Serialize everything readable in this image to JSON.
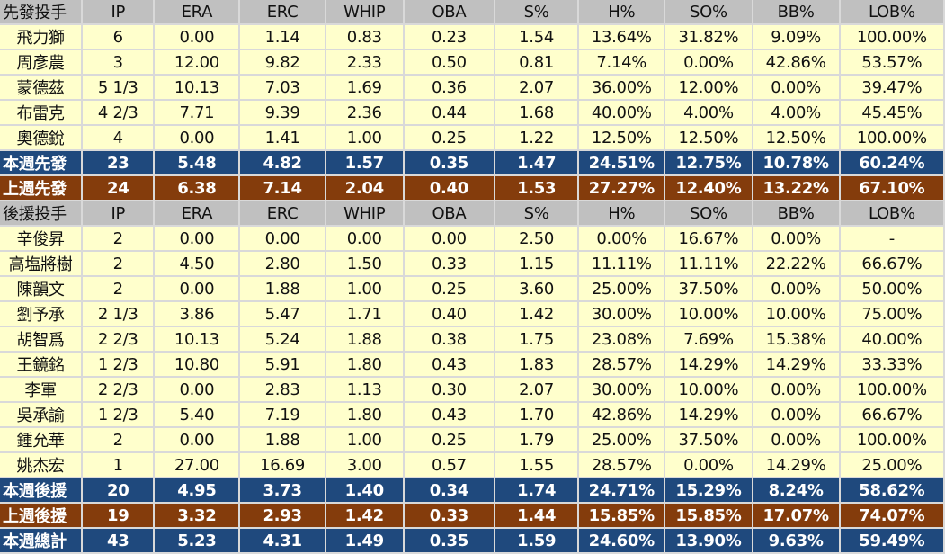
{
  "colors": {
    "header": "#c0c0c0",
    "data": "#ffffcc",
    "this_week": "#1f497d",
    "last_week": "#843c0c"
  },
  "columns": [
    "IP",
    "ERA",
    "ERC",
    "WHIP",
    "OBA",
    "S%",
    "H%",
    "SO%",
    "BB%",
    "LOB%"
  ],
  "rows": [
    {
      "type": "hdr",
      "cells": [
        "先發投手",
        "IP",
        "ERA",
        "ERC",
        "WHIP",
        "OBA",
        "S%",
        "H%",
        "SO%",
        "BB%",
        "LOB%"
      ]
    },
    {
      "type": "data",
      "cells": [
        "飛力獅",
        "6",
        "0.00",
        "1.14",
        "0.83",
        "0.23",
        "1.54",
        "13.64%",
        "31.82%",
        "9.09%",
        "100.00%"
      ]
    },
    {
      "type": "data",
      "cells": [
        "周彥農",
        "3",
        "12.00",
        "9.82",
        "2.33",
        "0.50",
        "0.81",
        "7.14%",
        "0.00%",
        "42.86%",
        "53.57%"
      ]
    },
    {
      "type": "data",
      "cells": [
        "蒙德茲",
        "5 1/3",
        "10.13",
        "7.03",
        "1.69",
        "0.36",
        "2.07",
        "36.00%",
        "12.00%",
        "0.00%",
        "39.47%"
      ]
    },
    {
      "type": "data",
      "cells": [
        "布雷克",
        "4 2/3",
        "7.71",
        "9.39",
        "2.36",
        "0.44",
        "1.68",
        "40.00%",
        "4.00%",
        "4.00%",
        "45.45%"
      ]
    },
    {
      "type": "data",
      "cells": [
        "奧德銳",
        "4",
        "0.00",
        "1.41",
        "1.00",
        "0.25",
        "1.22",
        "12.50%",
        "12.50%",
        "12.50%",
        "100.00%"
      ]
    },
    {
      "type": "cur",
      "cells": [
        "本週先發",
        "23",
        "5.48",
        "4.82",
        "1.57",
        "0.35",
        "1.47",
        "24.51%",
        "12.75%",
        "10.78%",
        "60.24%"
      ]
    },
    {
      "type": "prev",
      "cells": [
        "上週先發",
        "24",
        "6.38",
        "7.14",
        "2.04",
        "0.40",
        "1.53",
        "27.27%",
        "12.40%",
        "13.22%",
        "67.10%"
      ]
    },
    {
      "type": "hdr",
      "cells": [
        "後援投手",
        "IP",
        "ERA",
        "ERC",
        "WHIP",
        "OBA",
        "S%",
        "H%",
        "SO%",
        "BB%",
        "LOB%"
      ]
    },
    {
      "type": "data",
      "cells": [
        "辛俊昇",
        "2",
        "0.00",
        "0.00",
        "0.00",
        "0.00",
        "2.50",
        "0.00%",
        "16.67%",
        "0.00%",
        "-"
      ]
    },
    {
      "type": "data",
      "cells": [
        "高塩將樹",
        "2",
        "4.50",
        "2.80",
        "1.50",
        "0.33",
        "1.15",
        "11.11%",
        "11.11%",
        "22.22%",
        "66.67%"
      ]
    },
    {
      "type": "data",
      "cells": [
        "陳韻文",
        "2",
        "0.00",
        "1.88",
        "1.00",
        "0.25",
        "3.60",
        "25.00%",
        "37.50%",
        "0.00%",
        "50.00%"
      ]
    },
    {
      "type": "data",
      "cells": [
        "劉予承",
        "2 1/3",
        "3.86",
        "5.47",
        "1.71",
        "0.40",
        "1.42",
        "30.00%",
        "10.00%",
        "10.00%",
        "75.00%"
      ]
    },
    {
      "type": "data",
      "cells": [
        "胡智爲",
        "2 2/3",
        "10.13",
        "5.24",
        "1.88",
        "0.38",
        "1.75",
        "23.08%",
        "7.69%",
        "15.38%",
        "40.00%"
      ]
    },
    {
      "type": "data",
      "cells": [
        "王鏡銘",
        "1 2/3",
        "10.80",
        "5.91",
        "1.80",
        "0.43",
        "1.83",
        "28.57%",
        "14.29%",
        "14.29%",
        "33.33%"
      ]
    },
    {
      "type": "data",
      "cells": [
        "李軍",
        "2 2/3",
        "0.00",
        "2.83",
        "1.13",
        "0.30",
        "2.07",
        "30.00%",
        "10.00%",
        "0.00%",
        "100.00%"
      ]
    },
    {
      "type": "data",
      "cells": [
        "吳承諭",
        "1 2/3",
        "5.40",
        "7.19",
        "1.80",
        "0.43",
        "1.70",
        "42.86%",
        "14.29%",
        "0.00%",
        "66.67%"
      ]
    },
    {
      "type": "data",
      "cells": [
        "鍾允華",
        "2",
        "0.00",
        "1.88",
        "1.00",
        "0.25",
        "1.79",
        "25.00%",
        "37.50%",
        "0.00%",
        "100.00%"
      ]
    },
    {
      "type": "data",
      "cells": [
        "姚杰宏",
        "1",
        "27.00",
        "16.69",
        "3.00",
        "0.57",
        "1.55",
        "28.57%",
        "0.00%",
        "14.29%",
        "25.00%"
      ]
    },
    {
      "type": "cur",
      "cells": [
        "本週後援",
        "20",
        "4.95",
        "3.73",
        "1.40",
        "0.34",
        "1.74",
        "24.71%",
        "15.29%",
        "8.24%",
        "58.62%"
      ]
    },
    {
      "type": "prev",
      "cells": [
        "上週後援",
        "19",
        "3.32",
        "2.93",
        "1.42",
        "0.33",
        "1.44",
        "15.85%",
        "15.85%",
        "17.07%",
        "74.07%"
      ]
    },
    {
      "type": "cur",
      "cells": [
        "本週總計",
        "43",
        "5.23",
        "4.31",
        "1.49",
        "0.35",
        "1.59",
        "24.60%",
        "13.90%",
        "9.63%",
        "59.49%"
      ]
    }
  ]
}
